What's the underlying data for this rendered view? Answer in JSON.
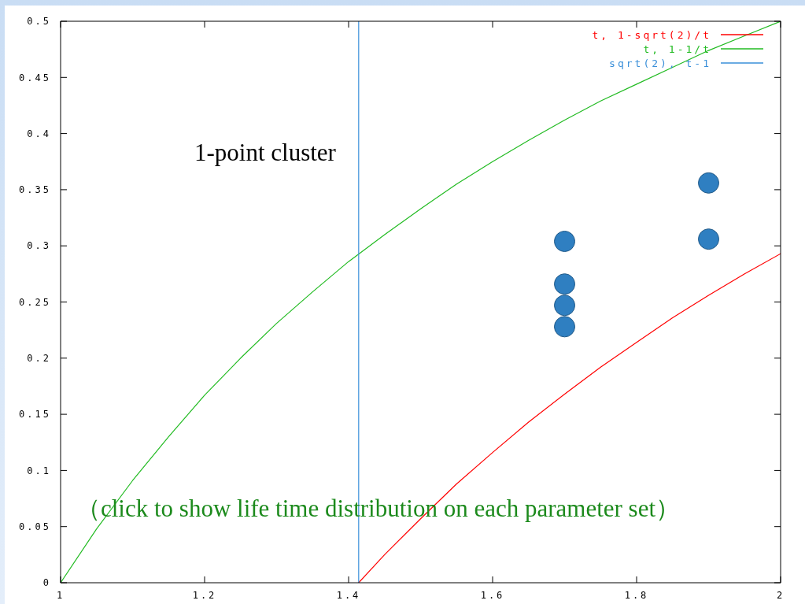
{
  "chart_data": {
    "type": "line",
    "series": [
      {
        "name": "t, 1-sqrt(2)/t",
        "color": "#ff0000",
        "x": [
          1.414,
          1.45,
          1.5,
          1.55,
          1.6,
          1.65,
          1.7,
          1.75,
          1.8,
          1.85,
          1.9,
          1.95,
          2
        ],
        "values": [
          0,
          0.025,
          0.057,
          0.088,
          0.116,
          0.143,
          0.168,
          0.192,
          0.214,
          0.236,
          0.256,
          0.275,
          0.293
        ]
      },
      {
        "name": "t, 1-1/t",
        "color": "#22bb22",
        "x": [
          1,
          1.05,
          1.1,
          1.15,
          1.2,
          1.25,
          1.3,
          1.35,
          1.4,
          1.45,
          1.5,
          1.55,
          1.6,
          1.65,
          1.7,
          1.75,
          1.8,
          1.85,
          1.9,
          1.95,
          2
        ],
        "values": [
          0,
          0.048,
          0.091,
          0.13,
          0.167,
          0.2,
          0.231,
          0.259,
          0.286,
          0.31,
          0.333,
          0.355,
          0.375,
          0.394,
          0.412,
          0.429,
          0.444,
          0.459,
          0.474,
          0.487,
          0.5
        ]
      },
      {
        "name": "sqrt(2), t-1",
        "color": "#3a8fd9",
        "x": [
          1.414,
          1.414
        ],
        "values": [
          0,
          0.5
        ]
      },
      {
        "type": "scatter",
        "color": "#2f7fc1",
        "marker": "circle",
        "x": [
          1.7,
          1.7,
          1.7,
          1.7,
          1.9,
          1.9
        ],
        "values": [
          0.304,
          0.266,
          0.247,
          0.228,
          0.356,
          0.306
        ]
      }
    ],
    "xlim": [
      1,
      2
    ],
    "xticks": [
      1,
      1.2,
      1.4,
      1.6,
      1.8,
      2
    ],
    "ylim": [
      0,
      0.5
    ],
    "yticks": [
      0,
      0.05,
      0.1,
      0.15,
      0.2,
      0.25,
      0.3,
      0.35,
      0.4,
      0.45,
      0.5
    ],
    "legend": "top right",
    "annotations": [
      "1-point cluster",
      "（click to show life time distribution on each parameter set）"
    ]
  }
}
